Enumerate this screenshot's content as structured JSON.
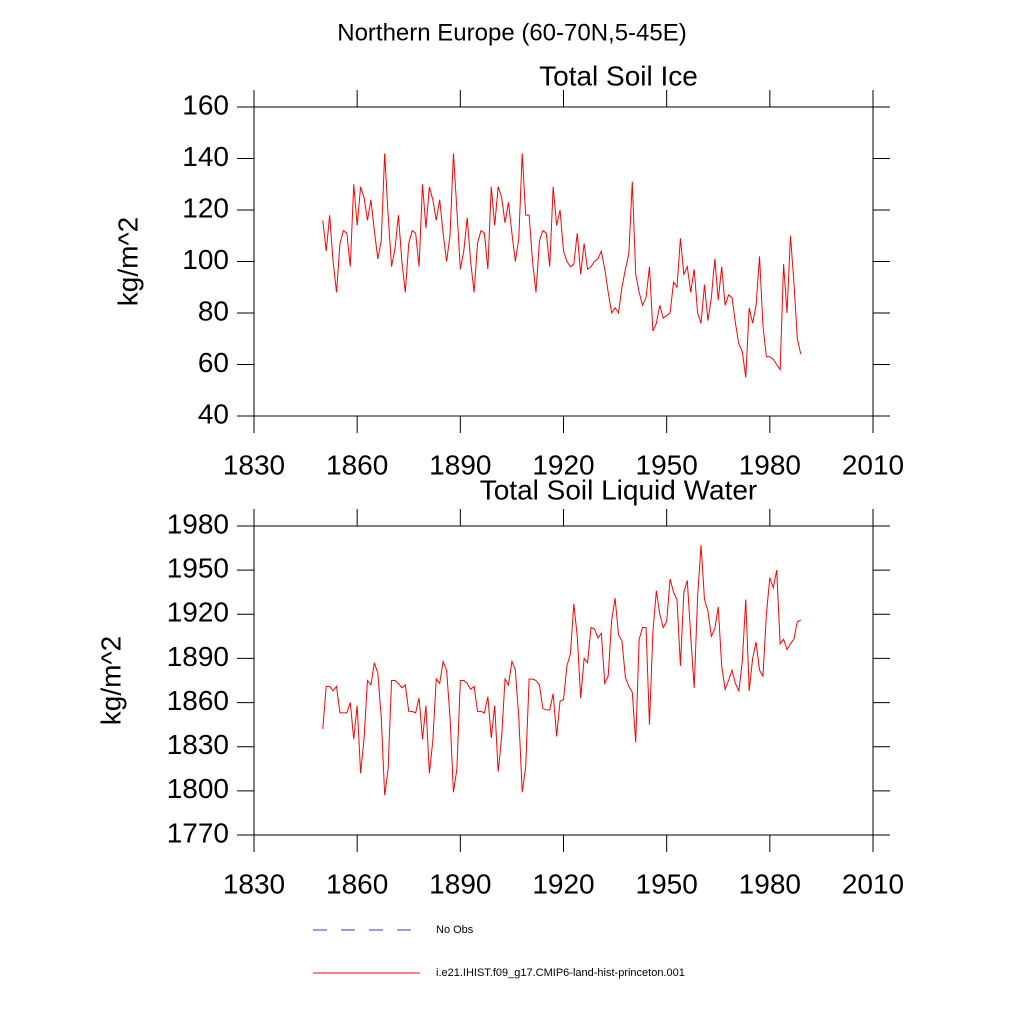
{
  "suptitle": "Northern Europe (60-70N,5-45E)",
  "legend": [
    {
      "name": "No Obs",
      "color": "#3a3ab0",
      "dash": true
    },
    {
      "name": "i.e21.IHIST.f09_g17.CMIP6-land-hist-princeton.001",
      "color": "#ff0000",
      "dash": false
    }
  ],
  "chart_data": [
    {
      "type": "line",
      "title": "Total Soil Ice",
      "ylabel": "kg/m^2",
      "xlim": [
        1830,
        2010
      ],
      "xticks": [
        1830,
        1860,
        1890,
        1920,
        1950,
        1980,
        2010
      ],
      "ylim": [
        40,
        160
      ],
      "yticks": [
        40,
        60,
        80,
        100,
        120,
        140,
        160
      ],
      "x": [
        1850,
        1851,
        1852,
        1853,
        1854,
        1855,
        1856,
        1857,
        1858,
        1859,
        1860,
        1861,
        1862,
        1863,
        1864,
        1865,
        1866,
        1867,
        1868,
        1869,
        1870,
        1871,
        1872,
        1873,
        1874,
        1875,
        1876,
        1877,
        1878,
        1879,
        1880,
        1881,
        1882,
        1883,
        1884,
        1885,
        1886,
        1887,
        1888,
        1889,
        1890,
        1891,
        1892,
        1893,
        1894,
        1895,
        1896,
        1897,
        1898,
        1899,
        1900,
        1901,
        1902,
        1903,
        1904,
        1905,
        1906,
        1907,
        1908,
        1909,
        1910,
        1911,
        1912,
        1913,
        1914,
        1915,
        1916,
        1917,
        1918,
        1919,
        1920,
        1921,
        1922,
        1923,
        1924,
        1925,
        1926,
        1927,
        1928,
        1929,
        1930,
        1931,
        1932,
        1933,
        1934,
        1935,
        1936,
        1937,
        1938,
        1939,
        1940,
        1941,
        1942,
        1943,
        1944,
        1945,
        1946,
        1947,
        1948,
        1949,
        1950,
        1951,
        1952,
        1953,
        1954,
        1955,
        1956,
        1957,
        1958,
        1959,
        1960,
        1961,
        1962,
        1963,
        1964,
        1965,
        1966,
        1967,
        1968,
        1969,
        1970,
        1971,
        1972,
        1973,
        1974,
        1975,
        1976,
        1977,
        1978,
        1979,
        1980,
        1981,
        1982,
        1983,
        1984,
        1985,
        1986,
        1987,
        1988,
        1989
      ],
      "series": [
        {
          "color": "#ff0000",
          "values": [
            116,
            104,
            118,
            100,
            88,
            107,
            112,
            111,
            98,
            130,
            114,
            129,
            125,
            116,
            124,
            112,
            101,
            108,
            142,
            118,
            98,
            105,
            118,
            100,
            88,
            107,
            112,
            111,
            98,
            130,
            113,
            129,
            124,
            116,
            124,
            111,
            100,
            110,
            142,
            120,
            97,
            104,
            117,
            100,
            88,
            107,
            112,
            111,
            97,
            129,
            114,
            129,
            125,
            115,
            123,
            111,
            100,
            109,
            142,
            118,
            118,
            100,
            88,
            108,
            112,
            111,
            98,
            129,
            114,
            120,
            104,
            100,
            98,
            99,
            111,
            95,
            107,
            97,
            98,
            100,
            101,
            104,
            97,
            88,
            80,
            82,
            80,
            90,
            97,
            103,
            131,
            95,
            88,
            83,
            86,
            98,
            73,
            76,
            83,
            78,
            79,
            80,
            92,
            90,
            109,
            95,
            98,
            88,
            97,
            80,
            76,
            91,
            77,
            86,
            101,
            85,
            98,
            83,
            87,
            86,
            76,
            68,
            65,
            55,
            82,
            76,
            83,
            102,
            75,
            63,
            63,
            62,
            60,
            58,
            99,
            80,
            110,
            92,
            70,
            64
          ]
        }
      ]
    },
    {
      "type": "line",
      "title": "Total Soil Liquid Water",
      "ylabel": "kg/m^2",
      "xlim": [
        1830,
        2010
      ],
      "xticks": [
        1830,
        1860,
        1890,
        1920,
        1950,
        1980,
        2010
      ],
      "ylim": [
        1770,
        1980
      ],
      "yticks": [
        1770,
        1800,
        1830,
        1860,
        1890,
        1920,
        1950,
        1980
      ],
      "x": [
        1850,
        1851,
        1852,
        1853,
        1854,
        1855,
        1856,
        1857,
        1858,
        1859,
        1860,
        1861,
        1862,
        1863,
        1864,
        1865,
        1866,
        1867,
        1868,
        1869,
        1870,
        1871,
        1872,
        1873,
        1874,
        1875,
        1876,
        1877,
        1878,
        1879,
        1880,
        1881,
        1882,
        1883,
        1884,
        1885,
        1886,
        1887,
        1888,
        1889,
        1890,
        1891,
        1892,
        1893,
        1894,
        1895,
        1896,
        1897,
        1898,
        1899,
        1900,
        1901,
        1902,
        1903,
        1904,
        1905,
        1906,
        1907,
        1908,
        1909,
        1910,
        1911,
        1912,
        1913,
        1914,
        1915,
        1916,
        1917,
        1918,
        1919,
        1920,
        1921,
        1922,
        1923,
        1924,
        1925,
        1926,
        1927,
        1928,
        1929,
        1930,
        1931,
        1932,
        1933,
        1934,
        1935,
        1936,
        1937,
        1938,
        1939,
        1940,
        1941,
        1942,
        1943,
        1944,
        1945,
        1946,
        1947,
        1948,
        1949,
        1950,
        1951,
        1952,
        1953,
        1954,
        1955,
        1956,
        1957,
        1958,
        1959,
        1960,
        1961,
        1962,
        1963,
        1964,
        1965,
        1966,
        1967,
        1968,
        1969,
        1970,
        1971,
        1972,
        1973,
        1974,
        1975,
        1976,
        1977,
        1978,
        1979,
        1980,
        1981,
        1982,
        1983,
        1984,
        1985,
        1986,
        1987,
        1988,
        1989
      ],
      "series": [
        {
          "color": "#ff0000",
          "values": [
            1842,
            1871,
            1871,
            1868,
            1871,
            1853,
            1853,
            1853,
            1860,
            1835,
            1858,
            1812,
            1835,
            1875,
            1872,
            1887,
            1880,
            1850,
            1797,
            1815,
            1875,
            1875,
            1873,
            1870,
            1872,
            1854,
            1854,
            1853,
            1863,
            1835,
            1858,
            1812,
            1834,
            1876,
            1873,
            1888,
            1882,
            1850,
            1799,
            1815,
            1875,
            1875,
            1873,
            1869,
            1871,
            1854,
            1854,
            1853,
            1864,
            1836,
            1858,
            1813,
            1836,
            1876,
            1872,
            1888,
            1882,
            1850,
            1799,
            1816,
            1876,
            1876,
            1875,
            1872,
            1856,
            1855,
            1855,
            1866,
            1837,
            1861,
            1862,
            1885,
            1893,
            1927,
            1905,
            1863,
            1890,
            1887,
            1911,
            1910,
            1904,
            1907,
            1873,
            1878,
            1916,
            1931,
            1906,
            1902,
            1877,
            1871,
            1867,
            1833,
            1903,
            1911,
            1911,
            1845,
            1908,
            1936,
            1920,
            1911,
            1915,
            1944,
            1935,
            1930,
            1885,
            1935,
            1943,
            1905,
            1870,
            1932,
            1967,
            1930,
            1922,
            1905,
            1910,
            1925,
            1885,
            1869,
            1875,
            1882,
            1873,
            1868,
            1888,
            1930,
            1868,
            1890,
            1901,
            1882,
            1878,
            1920,
            1945,
            1938,
            1950,
            1900,
            1903,
            1896,
            1900,
            1903,
            1915,
            1916
          ]
        }
      ]
    }
  ]
}
